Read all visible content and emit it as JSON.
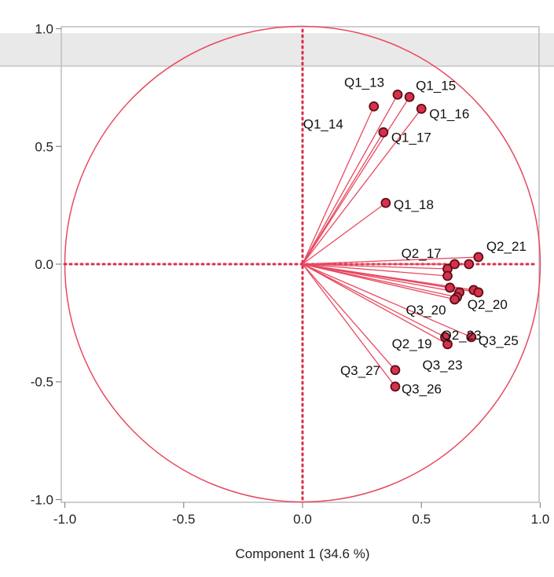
{
  "chart_data": {
    "type": "scatter",
    "xlabel": "Component 1  (34.6 %)",
    "ylabel": "",
    "xlim": [
      -1.0,
      1.0
    ],
    "ylim": [
      -1.0,
      1.0
    ],
    "x_ticks": [
      -1.0,
      -0.5,
      0.0,
      0.5,
      1.0
    ],
    "y_ticks": [
      1.0,
      0.5,
      0.0,
      -0.5,
      -1.0
    ],
    "x_tick_labels": [
      "-1.0",
      "-0.5",
      "0.0",
      "0.5",
      "1.0"
    ],
    "y_tick_labels": [
      "1.0",
      "0.5",
      "0.0",
      "-0.5",
      "-1.0"
    ],
    "grid": false,
    "unit_circle": true,
    "colors": {
      "accent": "#e8485f",
      "point_fill": "#d8304a",
      "point_stroke": "#5a0f1a",
      "frame": "#bdbdbd",
      "top_band": "#e9e9e9"
    },
    "points": [
      {
        "label": "Q1_13",
        "x": 0.4,
        "y": 0.72
      },
      {
        "label": "Q1_15",
        "x": 0.45,
        "y": 0.71
      },
      {
        "label": "Q1_16",
        "x": 0.5,
        "y": 0.66
      },
      {
        "label": "Q1_14",
        "x": 0.3,
        "y": 0.67
      },
      {
        "label": "Q1_17",
        "x": 0.34,
        "y": 0.56
      },
      {
        "label": "Q1_18",
        "x": 0.35,
        "y": 0.26
      },
      {
        "label": "Q2_21",
        "x": 0.74,
        "y": 0.03
      },
      {
        "label": "",
        "x": 0.7,
        "y": 0.0
      },
      {
        "label": "Q2_17",
        "x": 0.64,
        "y": 0.0
      },
      {
        "label": "",
        "x": 0.61,
        "y": -0.02
      },
      {
        "label": "",
        "x": 0.61,
        "y": -0.05
      },
      {
        "label": "Q3_20",
        "x": 0.62,
        "y": -0.1
      },
      {
        "label": "",
        "x": 0.66,
        "y": -0.12
      },
      {
        "label": "Q2_20",
        "x": 0.72,
        "y": -0.11
      },
      {
        "label": "",
        "x": 0.74,
        "y": -0.12
      },
      {
        "label": "Q2_23",
        "x": 0.65,
        "y": -0.14
      },
      {
        "label": "Q2_19",
        "x": 0.64,
        "y": -0.15
      },
      {
        "label": "Q3_25",
        "x": 0.71,
        "y": -0.31
      },
      {
        "label": "",
        "x": 0.6,
        "y": -0.31
      },
      {
        "label": "Q3_23",
        "x": 0.61,
        "y": -0.34
      },
      {
        "label": "Q3_27",
        "x": 0.39,
        "y": -0.45
      },
      {
        "label": "Q3_26",
        "x": 0.39,
        "y": -0.52
      }
    ]
  }
}
